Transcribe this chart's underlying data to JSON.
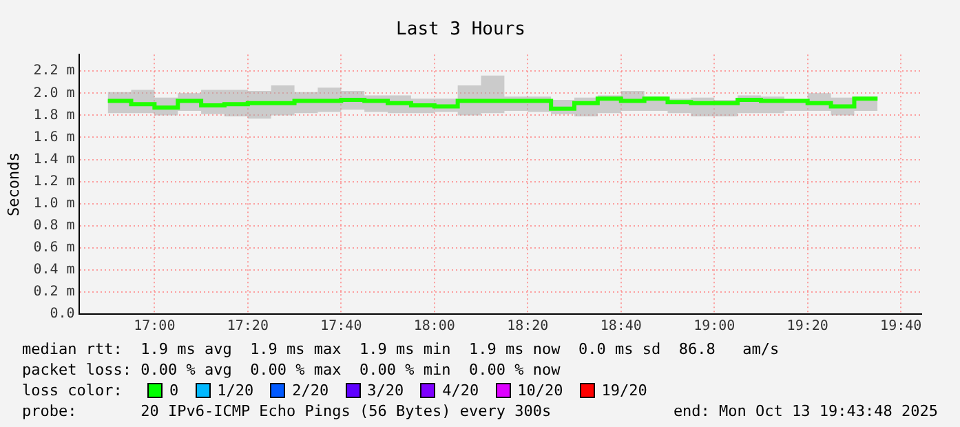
{
  "chart_data": {
    "type": "step",
    "title": "Last 3 Hours",
    "ylabel": "Seconds",
    "x": [
      16.8333,
      16.9167,
      17,
      17.0833,
      17.1667,
      17.25,
      17.3333,
      17.4167,
      17.5,
      17.5833,
      17.6667,
      17.75,
      17.8333,
      17.9167,
      18,
      18.0833,
      18.1667,
      18.25,
      18.3333,
      18.4167,
      18.5,
      18.5833,
      18.6667,
      18.75,
      18.8333,
      18.9167,
      19,
      19.0833,
      19.1667,
      19.25,
      19.3333,
      19.4167,
      19.5,
      19.5833
    ],
    "series": [
      {
        "color": "#20ff00",
        "values": [
          1.93,
          1.9,
          1.87,
          1.93,
          1.89,
          1.9,
          1.91,
          1.91,
          1.93,
          1.93,
          1.94,
          1.93,
          1.91,
          1.89,
          1.88,
          1.93,
          1.93,
          1.93,
          1.93,
          1.86,
          1.91,
          1.95,
          1.93,
          1.95,
          1.92,
          1.91,
          1.91,
          1.94,
          1.93,
          1.93,
          1.91,
          1.88,
          1.95,
          1.95
        ],
        "lower": [
          1.82,
          1.82,
          1.8,
          1.84,
          1.81,
          1.79,
          1.77,
          1.8,
          1.82,
          1.83,
          1.85,
          1.83,
          1.82,
          1.82,
          1.83,
          1.8,
          1.82,
          1.84,
          1.83,
          1.81,
          1.79,
          1.82,
          1.84,
          1.84,
          1.82,
          1.79,
          1.79,
          1.82,
          1.82,
          1.84,
          1.84,
          1.8,
          1.84,
          1.83
        ],
        "upper": [
          2.01,
          2.03,
          1.96,
          2,
          2.03,
          2.03,
          2.02,
          2.07,
          2.01,
          2.05,
          2.02,
          1.98,
          1.98,
          1.95,
          1.95,
          2.07,
          2.16,
          1.97,
          1.97,
          1.94,
          1.96,
          1.98,
          2.02,
          1.97,
          1.95,
          1.96,
          1.94,
          1.98,
          1.97,
          1.94,
          2,
          1.96,
          1.97,
          1.97
        ]
      }
    ],
    "xlim": [
      16.73,
      19.74
    ],
    "xticks": [
      {
        "value": 17,
        "label": "17:00"
      },
      {
        "value": 17.3333,
        "label": "17:20"
      },
      {
        "value": 17.6667,
        "label": "17:40"
      },
      {
        "value": 18,
        "label": "18:00"
      },
      {
        "value": 18.3333,
        "label": "18:20"
      },
      {
        "value": 18.6667,
        "label": "18:40"
      },
      {
        "value": 19,
        "label": "19:00"
      },
      {
        "value": 19.3333,
        "label": "19:20"
      },
      {
        "value": 19.6667,
        "label": "19:40"
      }
    ],
    "ylim": [
      0,
      2.35
    ],
    "yticks": [
      {
        "value": 0,
        "label": "0.0"
      },
      {
        "value": 0.2,
        "label": "0.2 m"
      },
      {
        "value": 0.4,
        "label": "0.4 m"
      },
      {
        "value": 0.6,
        "label": "0.6 m"
      },
      {
        "value": 0.8,
        "label": "0.8 m"
      },
      {
        "value": 1,
        "label": "1.0 m"
      },
      {
        "value": 1.2,
        "label": "1.2 m"
      },
      {
        "value": 1.4,
        "label": "1.4 m"
      },
      {
        "value": 1.6,
        "label": "1.6 m"
      },
      {
        "value": 1.8,
        "label": "1.8 m"
      },
      {
        "value": 2,
        "label": "2.0 m"
      },
      {
        "value": 2.2,
        "label": "2.2 m"
      }
    ],
    "grid": true,
    "legend": false,
    "annotations": [
      "median rtt:  1.9 ms avg  1.9 ms max  1.9 ms min  1.9 ms now  0.0 ms sd  86.8   am/s",
      "packet loss: 0.00 % avg  0.00 % max  0.00 % min  0.00 % now",
      "loss color:",
      "0",
      "1/20",
      "2/20",
      "3/20",
      "4/20",
      "10/20",
      "19/20",
      "probe:       20 IPv6-ICMP Echo Pings (56 Bytes) every 300s",
      "end: Mon Oct 13 19:43:48 2025"
    ]
  }
}
